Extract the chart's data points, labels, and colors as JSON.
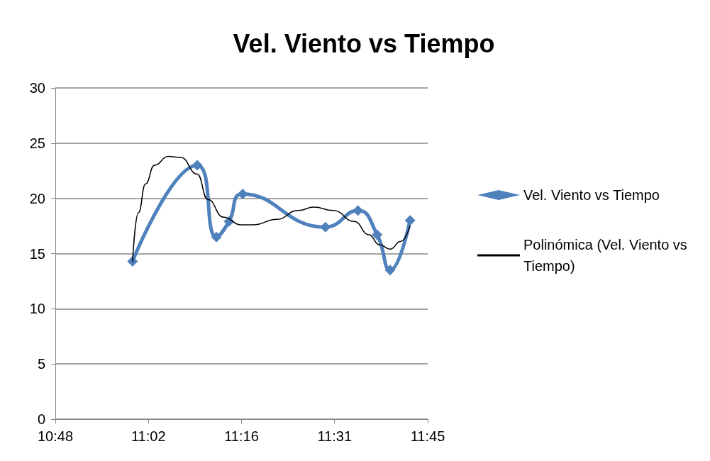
{
  "chart_data": {
    "type": "line",
    "title": "Vel. Viento vs Tiempo",
    "xlim": [
      10.8,
      11.75
    ],
    "xticks": [
      {
        "value": 10.8,
        "label": "10:48"
      },
      {
        "value": 11.0375,
        "label": "11:02"
      },
      {
        "value": 11.275,
        "label": "11:16"
      },
      {
        "value": 11.5125,
        "label": "11:31"
      },
      {
        "value": 11.75,
        "label": "11:45"
      }
    ],
    "ylim": [
      0,
      30
    ],
    "yticks": [
      0,
      5,
      10,
      15,
      20,
      25,
      30
    ],
    "grid": "y",
    "legend": "right",
    "series": [
      {
        "name": "Vel. Viento vs Tiempo",
        "color": "#4f81bd",
        "marker": "diamond",
        "line_style": "solid",
        "x": [
          10.997,
          11.162,
          11.211,
          11.243,
          11.278,
          11.489,
          11.572,
          11.621,
          11.654,
          11.705
        ],
        "values": [
          14.3,
          23.0,
          16.5,
          17.9,
          20.4,
          17.4,
          18.9,
          16.7,
          13.5,
          18.0
        ]
      },
      {
        "name": "Polinómica (Vel. Viento vs Tiempo)",
        "color": "#000000",
        "marker": "none",
        "line_style": "solid",
        "x": [
          10.997,
          11.012,
          11.03,
          11.053,
          11.088,
          11.12,
          11.162,
          11.189,
          11.229,
          11.274,
          11.305,
          11.365,
          11.419,
          11.46,
          11.509,
          11.563,
          11.6,
          11.627,
          11.654,
          11.681,
          11.705
        ],
        "values": [
          14.3,
          18.7,
          21.3,
          23.0,
          23.8,
          23.7,
          22.2,
          19.9,
          18.3,
          17.6,
          17.6,
          18.1,
          18.9,
          19.2,
          18.9,
          17.9,
          16.7,
          15.8,
          15.4,
          16.1,
          17.5
        ]
      }
    ]
  }
}
